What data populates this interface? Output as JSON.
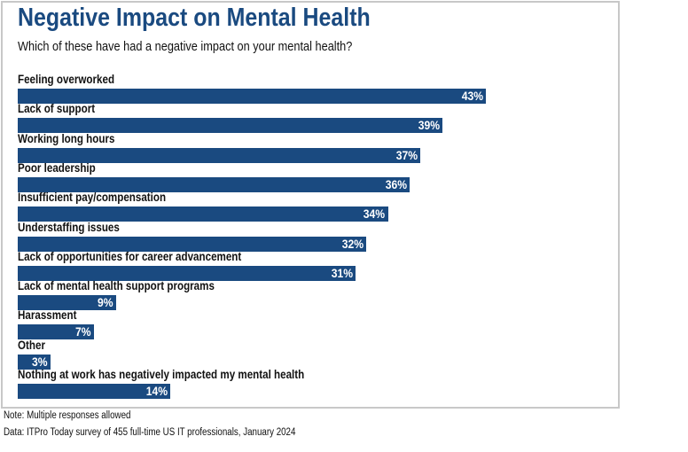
{
  "chart_data": {
    "type": "bar",
    "orientation": "horizontal",
    "title": "Negative Impact on Mental Health",
    "subtitle": "Which of these have had a negative impact on your mental health?",
    "categories": [
      "Feeling overworked",
      "Lack of support",
      "Working long hours",
      "Poor leadership",
      "Insufficient pay/compensation",
      "Understaffing issues",
      "Lack of opportunities for career advancement",
      "Lack of mental health support programs",
      "Harassment",
      "Other",
      "Nothing at work has negatively impacted my mental health"
    ],
    "values": [
      43,
      39,
      37,
      36,
      34,
      32,
      31,
      9,
      7,
      3,
      14
    ],
    "value_labels": [
      "43%",
      "39%",
      "37%",
      "36%",
      "34%",
      "32%",
      "31%",
      "9%",
      "7%",
      "3%",
      "14%"
    ],
    "unit": "%",
    "grid": false,
    "bar_color": "#1a4a80",
    "note": "Note: Multiple responses allowed",
    "source": "Data: ITPro Today survey of 455 full-time US IT professionals, January 2024"
  }
}
